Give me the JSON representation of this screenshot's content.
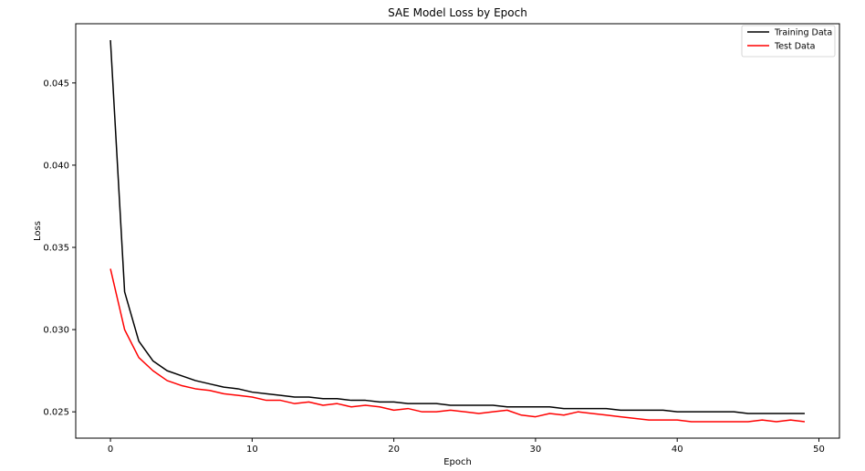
{
  "chart_data": {
    "type": "line",
    "title": "SAE Model Loss by Epoch",
    "xlabel": "Epoch",
    "ylabel": "Loss",
    "xlim": [
      -2.45,
      51.45
    ],
    "ylim": [
      0.0234,
      0.0486
    ],
    "xticks": [
      0,
      10,
      20,
      30,
      40,
      50
    ],
    "xtick_labels": [
      "0",
      "10",
      "20",
      "30",
      "40",
      "50"
    ],
    "yticks": [
      0.025,
      0.03,
      0.035,
      0.04,
      0.045
    ],
    "ytick_labels": [
      "0.025",
      "0.030",
      "0.035",
      "0.040",
      "0.045"
    ],
    "grid": false,
    "legend_position": "top-right",
    "x": [
      0,
      1,
      2,
      3,
      4,
      5,
      6,
      7,
      8,
      9,
      10,
      11,
      12,
      13,
      14,
      15,
      16,
      17,
      18,
      19,
      20,
      21,
      22,
      23,
      24,
      25,
      26,
      27,
      28,
      29,
      30,
      31,
      32,
      33,
      34,
      35,
      36,
      37,
      38,
      39,
      40,
      41,
      42,
      43,
      44,
      45,
      46,
      47,
      48,
      49
    ],
    "series": [
      {
        "name": "Training Data",
        "color": "#000000",
        "values": [
          0.0476,
          0.0323,
          0.0293,
          0.0281,
          0.0275,
          0.0272,
          0.0269,
          0.0267,
          0.0265,
          0.0264,
          0.0262,
          0.0261,
          0.026,
          0.0259,
          0.0259,
          0.0258,
          0.0258,
          0.0257,
          0.0257,
          0.0256,
          0.0256,
          0.0255,
          0.0255,
          0.0255,
          0.0254,
          0.0254,
          0.0254,
          0.0254,
          0.0253,
          0.0253,
          0.0253,
          0.0253,
          0.0252,
          0.0252,
          0.0252,
          0.0252,
          0.0251,
          0.0251,
          0.0251,
          0.0251,
          0.025,
          0.025,
          0.025,
          0.025,
          0.025,
          0.0249,
          0.0249,
          0.0249,
          0.0249,
          0.0249
        ]
      },
      {
        "name": "Test Data",
        "color": "#ff0000",
        "values": [
          0.0337,
          0.03,
          0.0283,
          0.0275,
          0.0269,
          0.0266,
          0.0264,
          0.0263,
          0.0261,
          0.026,
          0.0259,
          0.0257,
          0.0257,
          0.0255,
          0.0256,
          0.0254,
          0.0255,
          0.0253,
          0.0254,
          0.0253,
          0.0251,
          0.0252,
          0.025,
          0.025,
          0.0251,
          0.025,
          0.0249,
          0.025,
          0.0251,
          0.0248,
          0.0247,
          0.0249,
          0.0248,
          0.025,
          0.0249,
          0.0248,
          0.0247,
          0.0246,
          0.0245,
          0.0245,
          0.0245,
          0.0244,
          0.0244,
          0.0244,
          0.0244,
          0.0244,
          0.0245,
          0.0244,
          0.0245,
          0.0244
        ]
      }
    ]
  }
}
